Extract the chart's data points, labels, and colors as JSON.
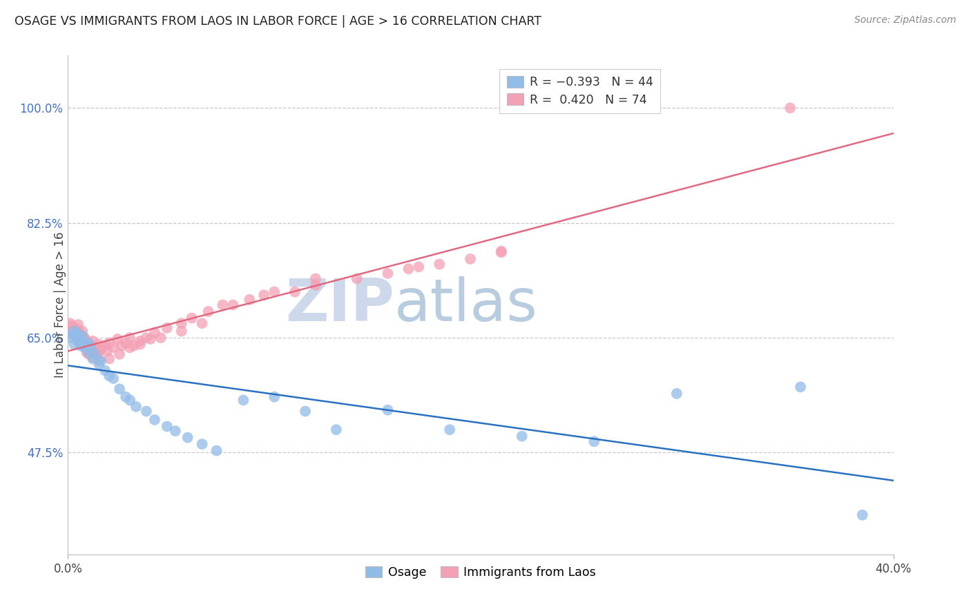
{
  "title": "OSAGE VS IMMIGRANTS FROM LAOS IN LABOR FORCE | AGE > 16 CORRELATION CHART",
  "source": "Source: ZipAtlas.com",
  "ylabel": "In Labor Force | Age > 16",
  "xlabel_osage": "Osage",
  "xlabel_laos": "Immigrants from Laos",
  "xmin": 0.0,
  "xmax": 0.4,
  "ymin": 0.32,
  "ymax": 1.08,
  "osage_R": -0.393,
  "osage_N": 44,
  "laos_R": 0.42,
  "laos_N": 74,
  "osage_color": "#92bce8",
  "laos_color": "#f4a0b5",
  "osage_line_color": "#2970c0",
  "laos_line_color": "#e06880",
  "background_color": "#ffffff",
  "grid_color": "#c8c8c8",
  "ytick_vals": [
    0.475,
    0.65,
    0.825,
    1.0
  ],
  "ytick_labels": [
    "47.5%",
    "65.0%",
    "82.5%",
    "100.0%"
  ],
  "xtick_vals": [
    0.0,
    0.4
  ],
  "xtick_labels": [
    "0.0%",
    "40.0%"
  ],
  "watermark_text": "ZIPatlas",
  "osage_x": [
    0.001,
    0.002,
    0.003,
    0.003,
    0.004,
    0.005,
    0.005,
    0.006,
    0.006,
    0.007,
    0.008,
    0.009,
    0.01,
    0.01,
    0.011,
    0.012,
    0.013,
    0.015,
    0.016,
    0.018,
    0.02,
    0.022,
    0.025,
    0.028,
    0.03,
    0.033,
    0.038,
    0.042,
    0.048,
    0.052,
    0.058,
    0.065,
    0.072,
    0.085,
    0.1,
    0.115,
    0.13,
    0.155,
    0.185,
    0.22,
    0.255,
    0.295,
    0.355,
    0.385
  ],
  "osage_y": [
    0.65,
    0.655,
    0.66,
    0.64,
    0.658,
    0.645,
    0.652,
    0.648,
    0.638,
    0.653,
    0.635,
    0.64,
    0.628,
    0.642,
    0.635,
    0.618,
    0.625,
    0.61,
    0.615,
    0.6,
    0.592,
    0.588,
    0.572,
    0.56,
    0.555,
    0.545,
    0.538,
    0.525,
    0.515,
    0.508,
    0.498,
    0.488,
    0.478,
    0.555,
    0.56,
    0.538,
    0.51,
    0.54,
    0.51,
    0.5,
    0.492,
    0.565,
    0.575,
    0.38
  ],
  "laos_x": [
    0.001,
    0.002,
    0.002,
    0.003,
    0.003,
    0.004,
    0.004,
    0.005,
    0.005,
    0.005,
    0.006,
    0.006,
    0.007,
    0.007,
    0.008,
    0.008,
    0.009,
    0.009,
    0.01,
    0.01,
    0.011,
    0.012,
    0.012,
    0.013,
    0.014,
    0.015,
    0.015,
    0.016,
    0.018,
    0.019,
    0.02,
    0.022,
    0.024,
    0.026,
    0.028,
    0.03,
    0.032,
    0.035,
    0.038,
    0.042,
    0.048,
    0.055,
    0.06,
    0.068,
    0.075,
    0.088,
    0.095,
    0.11,
    0.12,
    0.14,
    0.155,
    0.165,
    0.18,
    0.195,
    0.21,
    0.005,
    0.008,
    0.01,
    0.012,
    0.015,
    0.02,
    0.025,
    0.03,
    0.035,
    0.04,
    0.055,
    0.065,
    0.1,
    0.12,
    0.08,
    0.045,
    0.17,
    0.21,
    0.35
  ],
  "laos_y": [
    0.672,
    0.668,
    0.66,
    0.665,
    0.655,
    0.658,
    0.65,
    0.662,
    0.645,
    0.67,
    0.655,
    0.648,
    0.66,
    0.64,
    0.65,
    0.638,
    0.645,
    0.628,
    0.64,
    0.632,
    0.638,
    0.63,
    0.645,
    0.635,
    0.625,
    0.64,
    0.628,
    0.632,
    0.638,
    0.63,
    0.642,
    0.635,
    0.648,
    0.638,
    0.642,
    0.65,
    0.638,
    0.645,
    0.65,
    0.658,
    0.665,
    0.672,
    0.68,
    0.69,
    0.7,
    0.708,
    0.715,
    0.72,
    0.73,
    0.74,
    0.748,
    0.755,
    0.762,
    0.77,
    0.78,
    0.658,
    0.648,
    0.625,
    0.62,
    0.615,
    0.618,
    0.625,
    0.635,
    0.64,
    0.648,
    0.66,
    0.672,
    0.72,
    0.74,
    0.7,
    0.65,
    0.758,
    0.782,
    1.0
  ]
}
